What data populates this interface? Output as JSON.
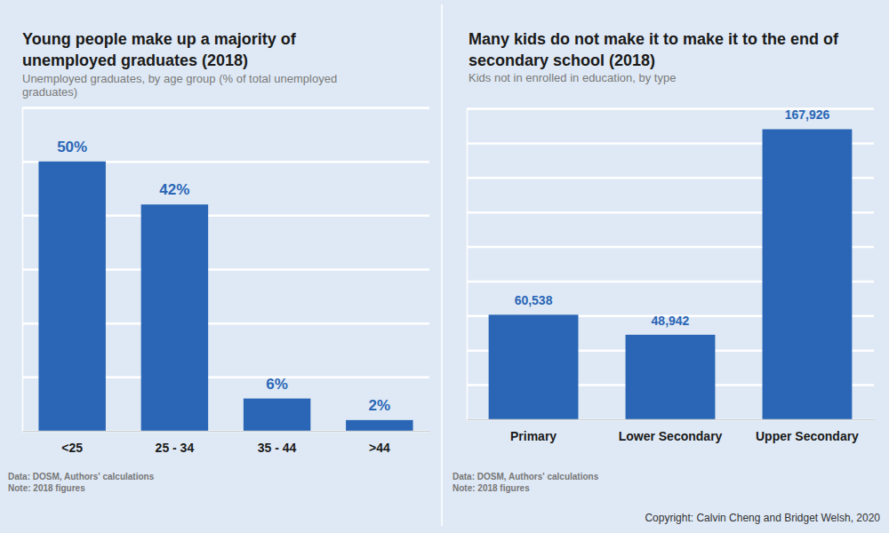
{
  "chart_data": [
    {
      "type": "bar",
      "title": "Young people make up a majority of unemployed graduates (2018)",
      "subtitle": "Unemployed graduates, by age group (% of total unemployed graduates)",
      "categories": [
        "<25",
        "25 - 34",
        "35 - 44",
        ">44"
      ],
      "values": [
        50,
        42,
        6,
        2
      ],
      "value_labels": [
        "50%",
        "42%",
        "6%",
        "2%"
      ],
      "color": "#2a66b5",
      "ylim": [
        0,
        60
      ],
      "yticks": [
        0,
        10,
        20,
        30,
        40,
        50,
        60
      ],
      "grid": true,
      "data_labels": true,
      "tick_labels": "x",
      "source": "Data: DOSM, Authors' calculations",
      "note": "Note: 2018 figures"
    },
    {
      "type": "bar",
      "title": "Many kids do not make it to make it to the end of secondary school (2018)",
      "subtitle": "Kids not in enrolled in education, by type",
      "categories": [
        "Primary",
        "Lower Secondary",
        "Upper Secondary"
      ],
      "values": [
        60538,
        48942,
        167926
      ],
      "value_labels": [
        "60,538",
        "48,942",
        "167,926"
      ],
      "color": "#2a66b5",
      "ylim": [
        0,
        180000
      ],
      "yticks": [
        0,
        20000,
        40000,
        60000,
        80000,
        100000,
        120000,
        140000,
        160000,
        180000
      ],
      "grid": true,
      "data_labels": true,
      "tick_labels": "x",
      "source": "Data: DOSM, Authors' calculations",
      "note": "Note: 2018 figures"
    }
  ],
  "copyright": "Copyright: Calvin Cheng and Bridget Welsh, 2020"
}
